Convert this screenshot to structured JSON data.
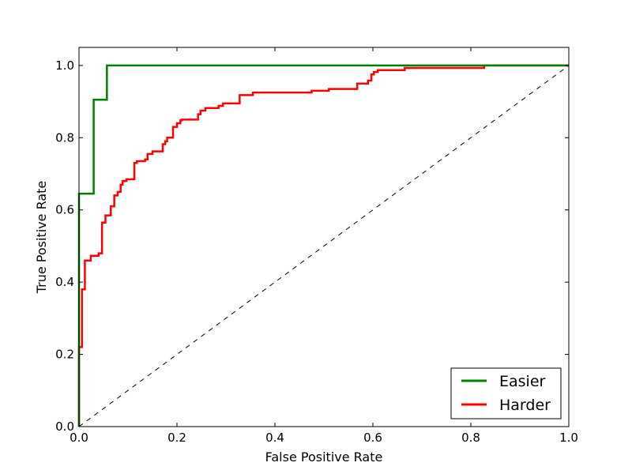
{
  "chart_data": {
    "type": "line",
    "xlabel": "False Positive Rate",
    "ylabel": "True Positive Rate",
    "xlim": [
      0.0,
      1.0
    ],
    "ylim": [
      0.0,
      1.05
    ],
    "x_ticks": [
      0.0,
      0.2,
      0.4,
      0.6,
      0.8,
      1.0
    ],
    "y_ticks": [
      0.0,
      0.2,
      0.4,
      0.6,
      0.8,
      1.0
    ],
    "x_tick_labels": [
      "0.0",
      "0.2",
      "0.4",
      "0.6",
      "0.8",
      "1.0"
    ],
    "y_tick_labels": [
      "0.0",
      "0.2",
      "0.4",
      "0.6",
      "0.8",
      "1.0"
    ],
    "grid": false,
    "legend_position": "lower-right",
    "reference_line": {
      "x": [
        0.0,
        1.0
      ],
      "y": [
        0.0,
        1.0
      ],
      "color": "#000000",
      "style": "dashed"
    },
    "series": [
      {
        "name": "Easier",
        "color": "#008000",
        "x": [
          0.0,
          0.0,
          0.03,
          0.03,
          0.057,
          0.057,
          0.827,
          1.0
        ],
        "y": [
          0.0,
          0.645,
          0.645,
          0.905,
          0.905,
          1.0,
          1.0,
          1.0
        ]
      },
      {
        "name": "Harder",
        "color": "#ff0000",
        "x": [
          0.0,
          0.0,
          0.006,
          0.006,
          0.012,
          0.012,
          0.024,
          0.024,
          0.04,
          0.04,
          0.047,
          0.047,
          0.054,
          0.054,
          0.065,
          0.065,
          0.072,
          0.072,
          0.079,
          0.079,
          0.085,
          0.085,
          0.089,
          0.089,
          0.097,
          0.097,
          0.113,
          0.113,
          0.118,
          0.118,
          0.135,
          0.135,
          0.14,
          0.14,
          0.15,
          0.15,
          0.171,
          0.171,
          0.176,
          0.176,
          0.18,
          0.18,
          0.192,
          0.192,
          0.2,
          0.2,
          0.207,
          0.207,
          0.21,
          0.21,
          0.243,
          0.243,
          0.248,
          0.248,
          0.258,
          0.258,
          0.285,
          0.285,
          0.294,
          0.294,
          0.328,
          0.328,
          0.355,
          0.355,
          0.475,
          0.475,
          0.51,
          0.51,
          0.568,
          0.568,
          0.59,
          0.59,
          0.597,
          0.597,
          0.602,
          0.602,
          0.61,
          0.61,
          0.665,
          0.665,
          0.827,
          0.827,
          1.0
        ],
        "y": [
          0.0,
          0.22,
          0.22,
          0.38,
          0.38,
          0.46,
          0.46,
          0.473,
          0.473,
          0.48,
          0.48,
          0.565,
          0.565,
          0.585,
          0.585,
          0.61,
          0.61,
          0.64,
          0.64,
          0.65,
          0.65,
          0.67,
          0.67,
          0.68,
          0.68,
          0.685,
          0.685,
          0.73,
          0.73,
          0.735,
          0.735,
          0.74,
          0.74,
          0.755,
          0.755,
          0.762,
          0.762,
          0.782,
          0.782,
          0.79,
          0.79,
          0.8,
          0.8,
          0.83,
          0.83,
          0.84,
          0.84,
          0.848,
          0.848,
          0.85,
          0.85,
          0.865,
          0.865,
          0.875,
          0.875,
          0.882,
          0.882,
          0.888,
          0.888,
          0.895,
          0.895,
          0.918,
          0.918,
          0.925,
          0.925,
          0.93,
          0.93,
          0.935,
          0.935,
          0.95,
          0.95,
          0.958,
          0.958,
          0.975,
          0.975,
          0.982,
          0.982,
          0.987,
          0.987,
          0.993,
          0.993,
          1.0,
          1.0
        ]
      }
    ]
  }
}
